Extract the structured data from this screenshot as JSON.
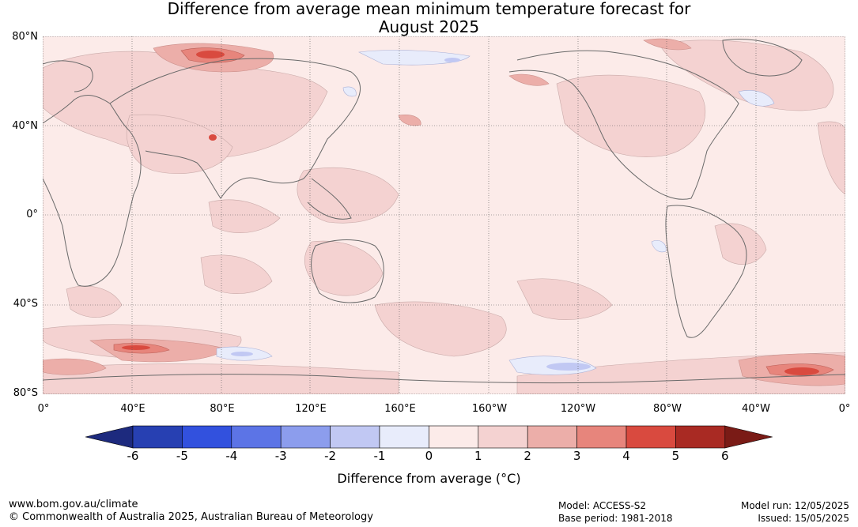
{
  "title": {
    "line1": "Difference from average mean minimum temperature forecast for",
    "line2": "August 2025"
  },
  "map": {
    "lat_labels": [
      "80°N",
      "40°N",
      "0°",
      "40°S",
      "80°S"
    ],
    "lon_labels": [
      "0°",
      "40°E",
      "80°E",
      "120°E",
      "160°E",
      "160°W",
      "120°W",
      "80°W",
      "40°W",
      "0°"
    ],
    "fill_colors": {
      "ocean_background": "#fcebe9",
      "anomaly_1_2": "#f4d2d1",
      "anomaly_2_3": "#ecaea9",
      "anomaly_3_4": "#e7857c",
      "anomaly_4_5": "#d94a3f",
      "anomaly_neg_1_0": "#e8ecfb",
      "anomaly_neg_2_1": "#c1c8f3",
      "coastline": "#6a6a6a",
      "gridline": "#555555"
    }
  },
  "colorbar": {
    "ticks": [
      "-6",
      "-5",
      "-4",
      "-3",
      "-2",
      "-1",
      "0",
      "1",
      "2",
      "3",
      "4",
      "5",
      "6"
    ],
    "colors": [
      "#1d2a7e",
      "#2740b2",
      "#3251de",
      "#5c74e6",
      "#8c9ded",
      "#c1c8f3",
      "#e8ecfb",
      "#fcebe9",
      "#f4d2d1",
      "#ecaea9",
      "#e7857c",
      "#d94a3f",
      "#a92a23",
      "#7a1b16"
    ],
    "label": "Difference from average (°C)"
  },
  "footer": {
    "website": "www.bom.gov.au/climate",
    "copyright": "© Commonwealth of Australia 2025, Australian Bureau of Meteorology",
    "model": "Model: ACCESS-S2",
    "base_period": "Base period: 1981-2018",
    "model_run": "Model run: 12/05/2025",
    "issued": "Issued: 15/05/2025"
  }
}
